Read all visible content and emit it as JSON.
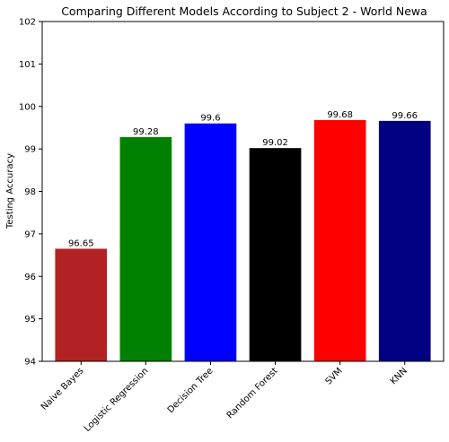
{
  "chart_data": {
    "type": "bar",
    "title": "Comparing Different Models According to Subject 2  - World Newa",
    "xlabel": "",
    "ylabel": "Testing Accuracy",
    "categories": [
      "Naive Bayes",
      "Logistic Regression",
      "Decision Tree",
      "Random Forest",
      "SVM",
      "KNN"
    ],
    "values": [
      96.65,
      99.28,
      99.6,
      99.02,
      99.68,
      99.66
    ],
    "data_labels": [
      "96.65",
      "99.28",
      "99.6",
      "99.02",
      "99.68",
      "99.66"
    ],
    "colors": [
      "#b22222",
      "#008000",
      "#0000ff",
      "#000000",
      "#ff0000",
      "#000080"
    ],
    "ylim": [
      94,
      102
    ],
    "yticks": [
      94,
      95,
      96,
      97,
      98,
      99,
      100,
      101,
      102
    ],
    "grid": false,
    "legend": "none"
  }
}
